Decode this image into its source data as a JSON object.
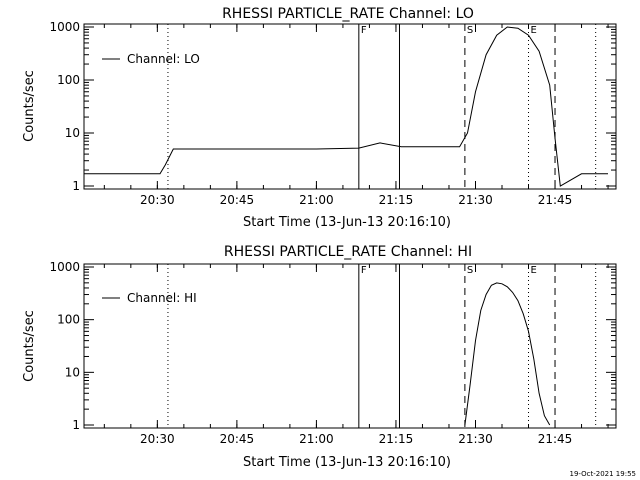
{
  "chart_data": [
    {
      "type": "line",
      "title": "RHESSI PARTICLE_RATE Channel: LO",
      "xlabel": "Start Time (13-Jun-13 20:16:10)",
      "ylabel": "Counts/sec",
      "y_scale": "log",
      "ylim": [
        1,
        1000
      ],
      "xlim": [
        "20:16:10",
        "21:56:30"
      ],
      "x_ticks": [
        "20:30",
        "20:45",
        "21:00",
        "21:15",
        "21:30",
        "21:45"
      ],
      "y_ticks": [
        "1",
        "10",
        "100",
        "1000"
      ],
      "legend": {
        "position": "top-left",
        "entries": [
          "Channel: LO"
        ]
      },
      "grid": false,
      "markers": [
        {
          "time": "20:32:00",
          "style": "dotted",
          "label": ""
        },
        {
          "time": "21:08:00",
          "style": "solid",
          "label": "F"
        },
        {
          "time": "21:15:40",
          "style": "solid",
          "label": ""
        },
        {
          "time": "21:28:00",
          "style": "dashed",
          "label": "S"
        },
        {
          "time": "21:40:00",
          "style": "dotted",
          "label": "E"
        },
        {
          "time": "21:45:00",
          "style": "dashed",
          "label": ""
        },
        {
          "time": "21:52:40",
          "style": "dotted",
          "label": ""
        }
      ],
      "series": [
        {
          "name": "Channel: LO",
          "x": [
            "20:16:10",
            "20:20:00",
            "20:25:00",
            "20:29:00",
            "20:30:30",
            "20:31:30",
            "20:33:00",
            "20:40:00",
            "20:50:00",
            "21:00:00",
            "21:08:00",
            "21:12:00",
            "21:16:00",
            "21:20:00",
            "21:27:00",
            "21:28:30",
            "21:30:00",
            "21:32:00",
            "21:34:00",
            "21:36:00",
            "21:38:00",
            "21:40:00",
            "21:42:00",
            "21:44:00",
            "21:45:00",
            "21:46:00",
            "21:50:00",
            "21:55:00"
          ],
          "y": [
            1.7,
            1.7,
            1.7,
            1.7,
            1.7,
            2.5,
            5,
            5,
            5,
            5,
            5.2,
            6.5,
            5.5,
            5.5,
            5.5,
            10,
            60,
            300,
            700,
            1000,
            950,
            700,
            350,
            80,
            8,
            1,
            1.7,
            1.7
          ]
        }
      ]
    },
    {
      "type": "line",
      "title": "RHESSI PARTICLE_RATE Channel: HI",
      "xlabel": "Start Time (13-Jun-13 20:16:10)",
      "ylabel": "Counts/sec",
      "y_scale": "log",
      "ylim": [
        1,
        1000
      ],
      "xlim": [
        "20:16:10",
        "21:56:30"
      ],
      "x_ticks": [
        "20:30",
        "20:45",
        "21:00",
        "21:15",
        "21:30",
        "21:45"
      ],
      "y_ticks": [
        "1",
        "10",
        "100",
        "1000"
      ],
      "legend": {
        "position": "top-left",
        "entries": [
          "Channel: HI"
        ]
      },
      "grid": false,
      "markers": [
        {
          "time": "20:32:00",
          "style": "dotted",
          "label": ""
        },
        {
          "time": "21:08:00",
          "style": "solid",
          "label": "F"
        },
        {
          "time": "21:15:40",
          "style": "solid",
          "label": ""
        },
        {
          "time": "21:28:00",
          "style": "dashed",
          "label": "S"
        },
        {
          "time": "21:40:00",
          "style": "dotted",
          "label": "E"
        },
        {
          "time": "21:45:00",
          "style": "dashed",
          "label": ""
        },
        {
          "time": "21:52:40",
          "style": "dotted",
          "label": ""
        }
      ],
      "series": [
        {
          "name": "Channel: HI",
          "x": [
            "21:28:00",
            "21:29:00",
            "21:30:00",
            "21:31:00",
            "21:32:00",
            "21:33:00",
            "21:34:00",
            "21:35:00",
            "21:36:00",
            "21:37:00",
            "21:38:00",
            "21:39:00",
            "21:40:00",
            "21:41:00",
            "21:42:00",
            "21:43:00",
            "21:44:00"
          ],
          "y": [
            1,
            6,
            40,
            150,
            300,
            450,
            500,
            480,
            420,
            330,
            230,
            130,
            60,
            18,
            4,
            1.5,
            1
          ]
        }
      ]
    }
  ],
  "footer_timestamp": "19-Oct-2021 19:55"
}
